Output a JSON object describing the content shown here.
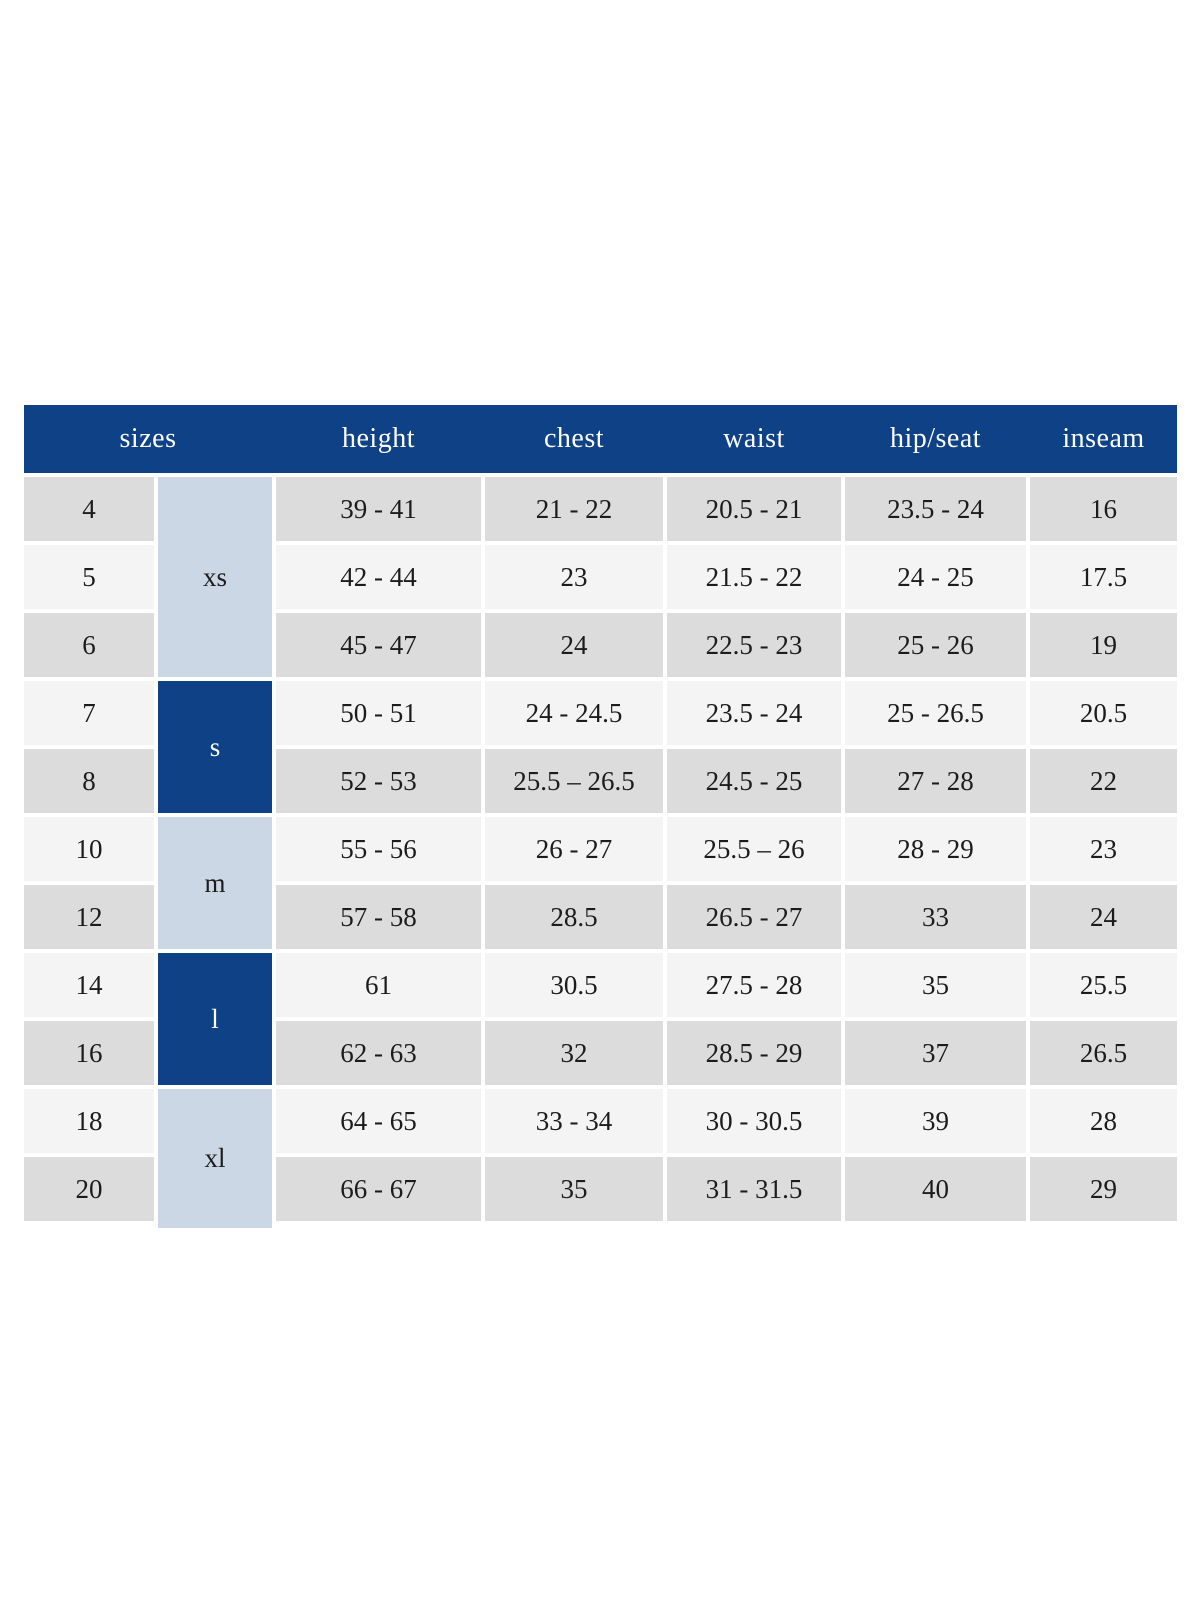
{
  "colors": {
    "navy": "#0e4186",
    "light_blue": "#ccd7e5",
    "row_gray": "#dcdcdc",
    "row_light": "#f4f4f4",
    "text_dark": "#1c1c1c",
    "header_text": "#ffffff"
  },
  "table": {
    "header": {
      "sizes_label": "sizes",
      "columns": [
        "height",
        "chest",
        "waist",
        "hip/seat",
        "inseam"
      ]
    },
    "groups": [
      {
        "label": "xs",
        "tone": "light",
        "sizes": [
          "4",
          "5",
          "6"
        ]
      },
      {
        "label": "s",
        "tone": "dark",
        "sizes": [
          "7",
          "8"
        ]
      },
      {
        "label": "m",
        "tone": "light",
        "sizes": [
          "10",
          "12"
        ]
      },
      {
        "label": "l",
        "tone": "dark",
        "sizes": [
          "14",
          "16"
        ]
      },
      {
        "label": "xl",
        "tone": "light",
        "sizes": [
          "18",
          "20"
        ]
      }
    ],
    "rows": [
      {
        "size": "4",
        "height": "39 - 41",
        "chest": "21 - 22",
        "waist": "20.5 - 21",
        "hip_seat": "23.5 - 24",
        "inseam": "16"
      },
      {
        "size": "5",
        "height": "42 - 44",
        "chest": "23",
        "waist": "21.5 - 22",
        "hip_seat": "24 - 25",
        "inseam": "17.5"
      },
      {
        "size": "6",
        "height": "45 - 47",
        "chest": "24",
        "waist": "22.5 - 23",
        "hip_seat": "25 - 26",
        "inseam": "19"
      },
      {
        "size": "7",
        "height": "50 - 51",
        "chest": "24 - 24.5",
        "waist": "23.5 - 24",
        "hip_seat": "25 - 26.5",
        "inseam": "20.5"
      },
      {
        "size": "8",
        "height": "52 - 53",
        "chest": "25.5 – 26.5",
        "waist": "24.5 - 25",
        "hip_seat": "27 - 28",
        "inseam": "22"
      },
      {
        "size": "10",
        "height": "55 - 56",
        "chest": "26 - 27",
        "waist": "25.5 – 26",
        "hip_seat": "28 - 29",
        "inseam": "23"
      },
      {
        "size": "12",
        "height": "57 - 58",
        "chest": "28.5",
        "waist": "26.5 - 27",
        "hip_seat": "33",
        "inseam": "24"
      },
      {
        "size": "14",
        "height": "61",
        "chest": "30.5",
        "waist": "27.5 - 28",
        "hip_seat": "35",
        "inseam": "25.5"
      },
      {
        "size": "16",
        "height": "62 - 63",
        "chest": "32",
        "waist": "28.5 - 29",
        "hip_seat": "37",
        "inseam": "26.5"
      },
      {
        "size": "18",
        "height": "64 - 65",
        "chest": "33 - 34",
        "waist": "30 - 30.5",
        "hip_seat": "39",
        "inseam": "28"
      },
      {
        "size": "20",
        "height": "66 - 67",
        "chest": "35",
        "waist": "31 - 31.5",
        "hip_seat": "40",
        "inseam": "29"
      }
    ]
  }
}
